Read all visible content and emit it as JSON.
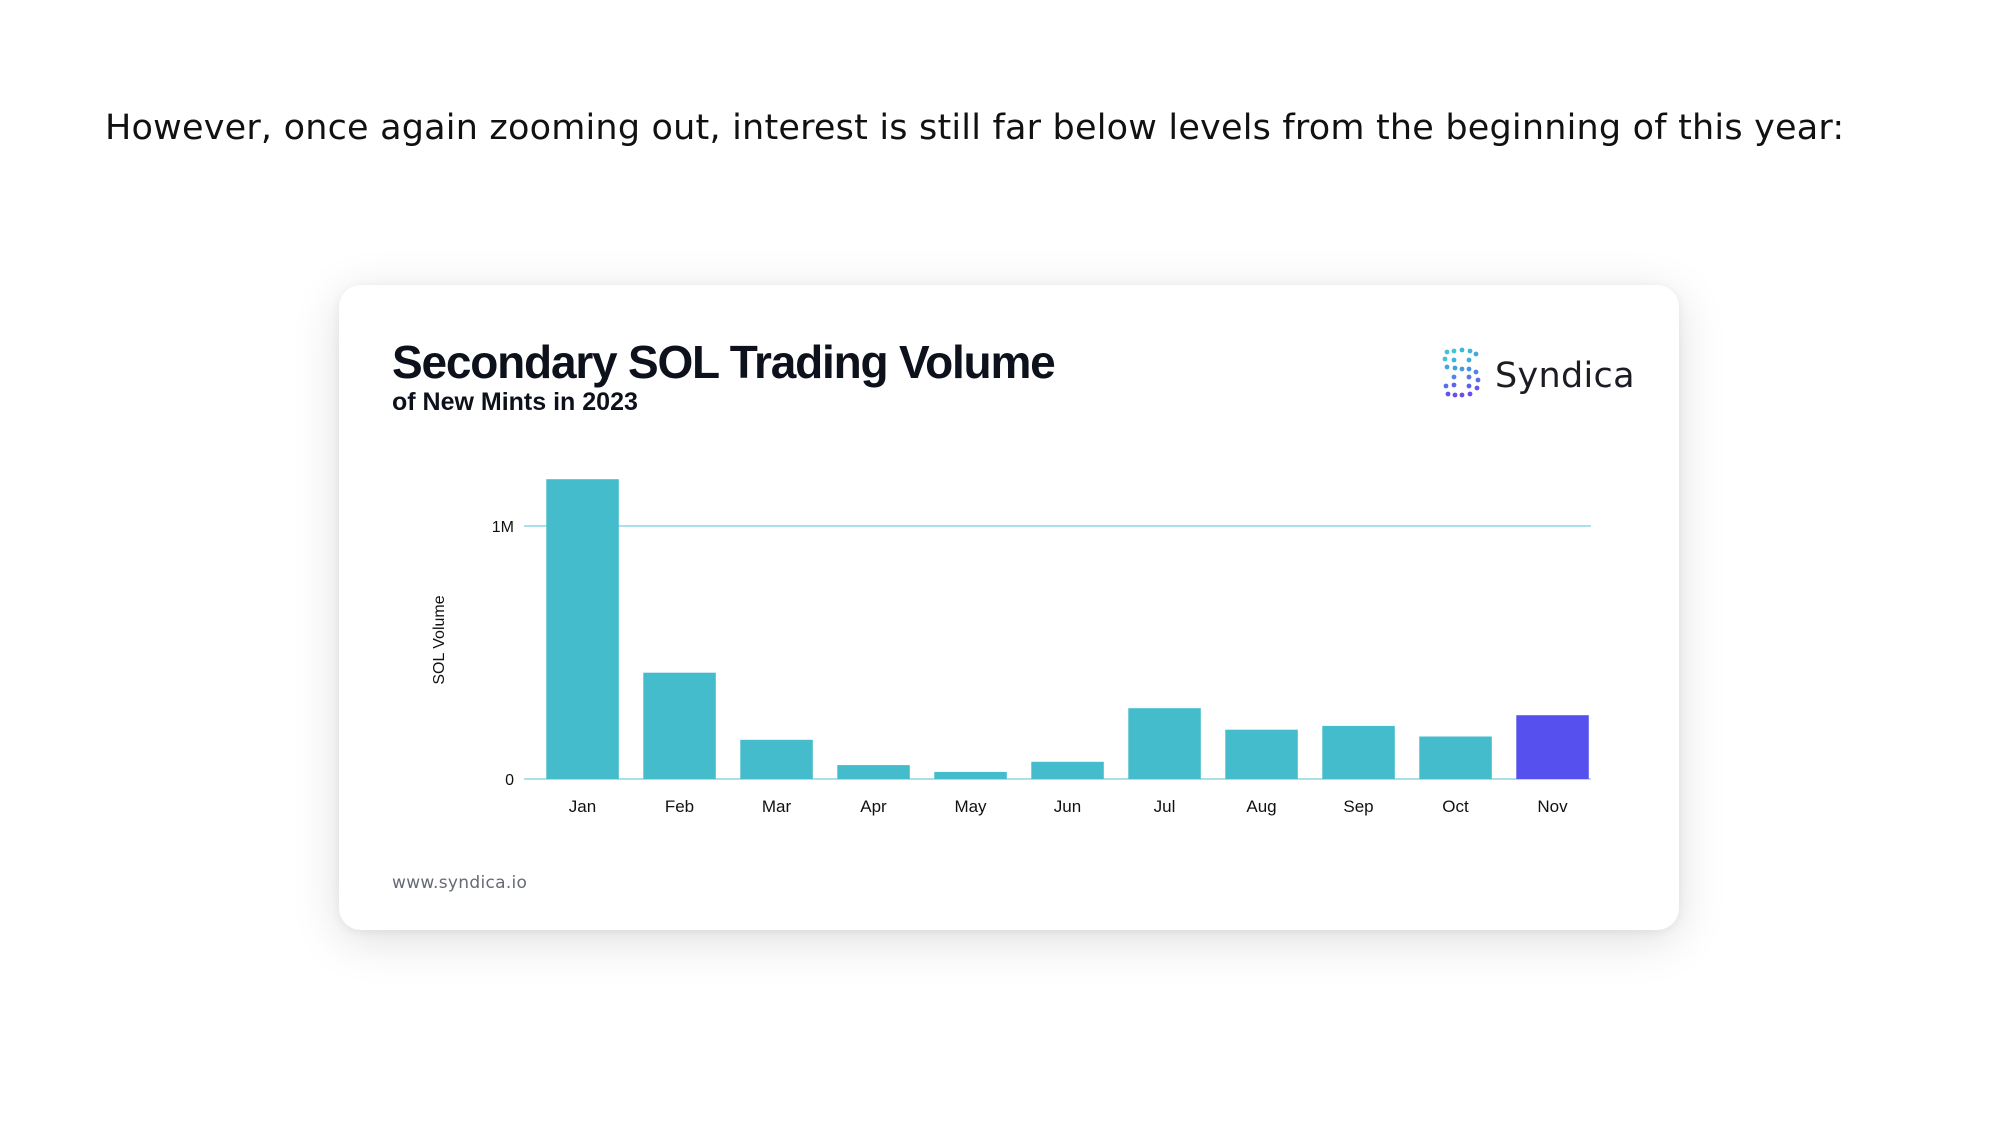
{
  "intro_text": "However, once again zooming out, interest is still far below levels from the beginning of this year:",
  "card": {
    "brand_name": "Syndica",
    "brand_icon": "syndica-logo-icon",
    "footer_url": "www.syndica.io"
  },
  "chart_data": {
    "type": "bar",
    "title": "Secondary SOL Trading Volume",
    "subtitle": "of New Mints in 2023",
    "xlabel": "",
    "ylabel": "SOL Volume",
    "categories": [
      "Jan",
      "Feb",
      "Mar",
      "Apr",
      "May",
      "Jun",
      "Jul",
      "Aug",
      "Sep",
      "Oct",
      "Nov"
    ],
    "values": [
      1185000,
      420000,
      155000,
      55000,
      28000,
      68000,
      280000,
      195000,
      210000,
      168000,
      252000
    ],
    "ylim": [
      0,
      1200000
    ],
    "yticks": [
      {
        "value": 0,
        "label": "0"
      },
      {
        "value": 1000000,
        "label": "1M"
      }
    ],
    "grid": "horizontal at 1M",
    "legend": "none",
    "colors": {
      "default_bar": "#44bccc",
      "highlight_bar": "#5651ee",
      "gridline": "#8fd6e0",
      "baseline": "#8fd6e0"
    },
    "highlight_category": "Nov"
  }
}
